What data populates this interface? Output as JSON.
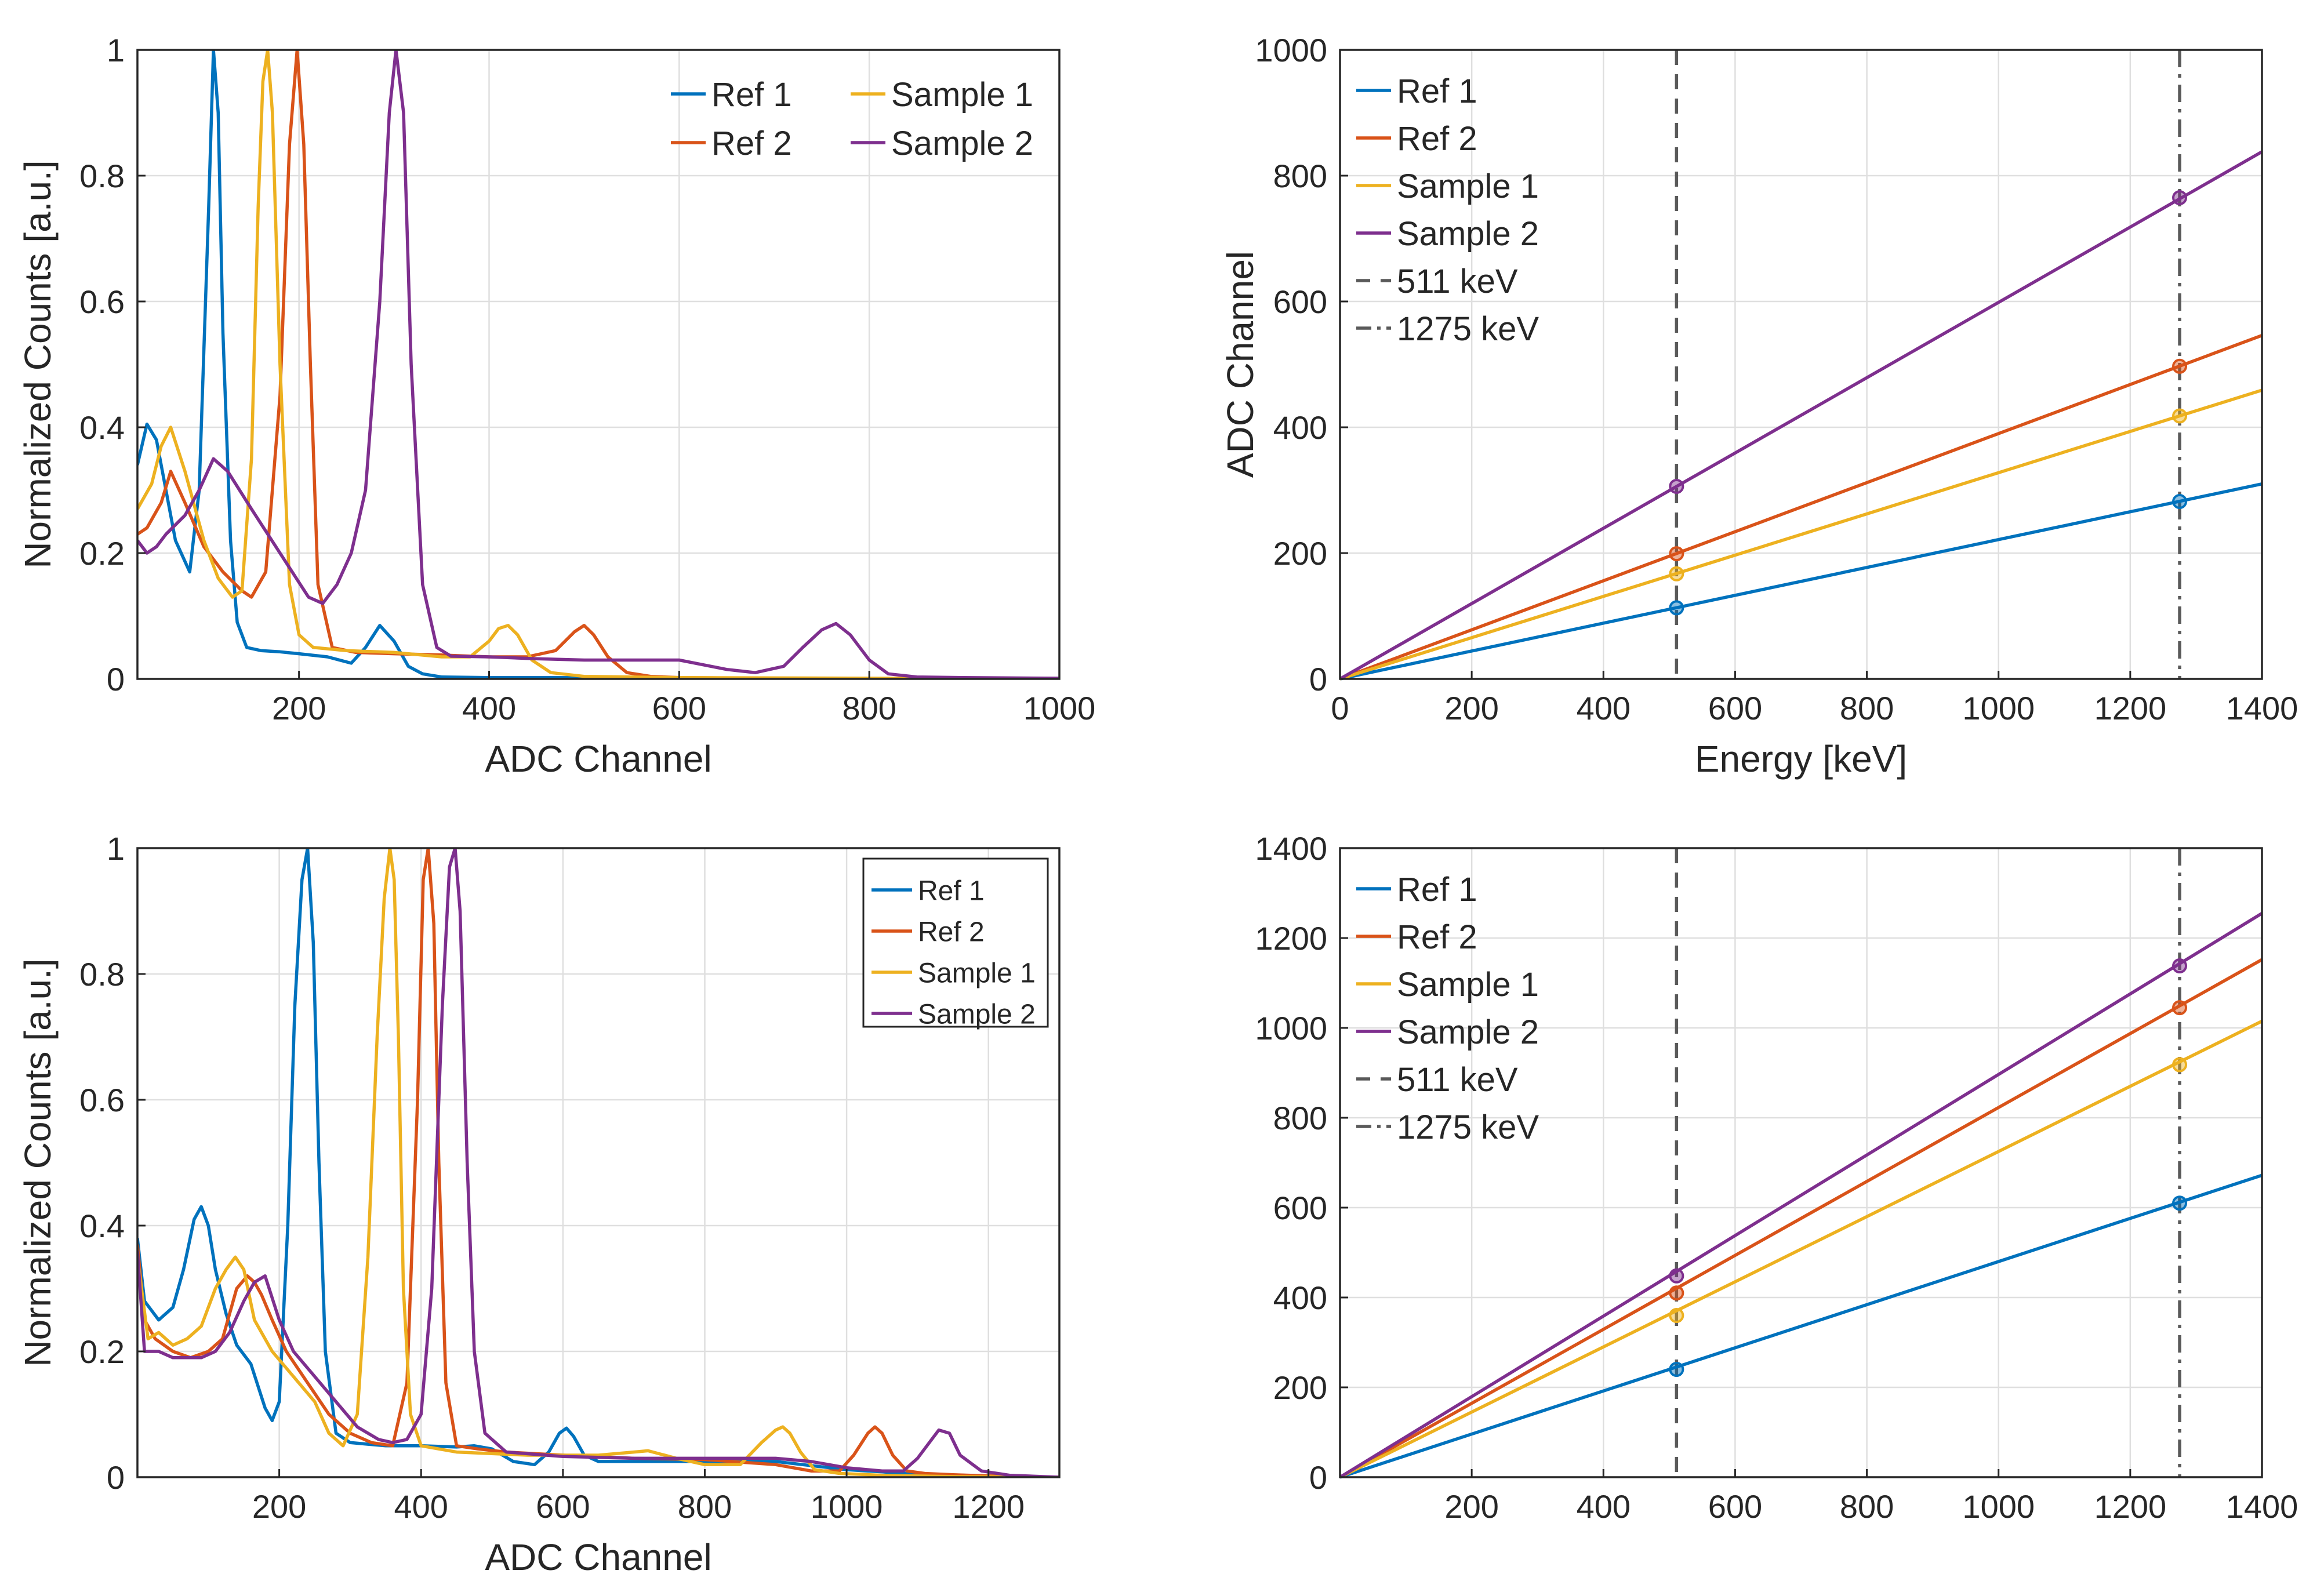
{
  "colors": {
    "ref1": "#0072BD",
    "ref2": "#D95319",
    "sample1": "#EDB120",
    "sample2": "#7E2F8E",
    "grid": "#dfdfdf",
    "axis": "#262626",
    "ref_line": "#5a5a5a"
  },
  "chart_data": [
    {
      "id": "spectrum-top",
      "type": "line",
      "title": "",
      "xlabel": "ADC Channel",
      "ylabel": "Normalized Counts [a.u.]",
      "xlim": [
        30,
        1000
      ],
      "ylim": [
        0,
        1
      ],
      "xticks": [
        "200",
        "400",
        "600",
        "800",
        "1000"
      ],
      "xtick_values": [
        200,
        400,
        600,
        800,
        1000
      ],
      "yticks": [
        "0",
        "0.2",
        "0.4",
        "0.6",
        "0.8",
        "1"
      ],
      "ytick_values": [
        0,
        0.2,
        0.4,
        0.6,
        0.8,
        1
      ],
      "grid": true,
      "legend": {
        "placement": "top-right",
        "layout": "two-column",
        "boxed": false
      },
      "series": [
        {
          "name": "Ref 1",
          "color_key": "ref1",
          "x": [
            30,
            40,
            50,
            60,
            70,
            85,
            95,
            105,
            110,
            115,
            120,
            128,
            135,
            145,
            160,
            180,
            200,
            230,
            255,
            270,
            285,
            300,
            315,
            330,
            350,
            400,
            500,
            700,
            1000
          ],
          "y": [
            0.34,
            0.405,
            0.38,
            0.3,
            0.22,
            0.17,
            0.3,
            0.75,
            1.0,
            0.9,
            0.55,
            0.22,
            0.09,
            0.05,
            0.045,
            0.043,
            0.04,
            0.035,
            0.025,
            0.05,
            0.085,
            0.06,
            0.02,
            0.008,
            0.003,
            0.002,
            0.002,
            0.001,
            0.0
          ]
        },
        {
          "name": "Ref 2",
          "color_key": "ref2",
          "x": [
            30,
            40,
            55,
            65,
            80,
            100,
            120,
            140,
            150,
            165,
            180,
            190,
            198,
            205,
            212,
            220,
            235,
            260,
            300,
            350,
            400,
            440,
            470,
            490,
            500,
            510,
            525,
            545,
            570,
            600,
            700,
            1000
          ],
          "y": [
            0.23,
            0.24,
            0.28,
            0.33,
            0.28,
            0.21,
            0.17,
            0.14,
            0.13,
            0.17,
            0.45,
            0.85,
            1.0,
            0.85,
            0.5,
            0.15,
            0.05,
            0.042,
            0.04,
            0.038,
            0.035,
            0.035,
            0.045,
            0.075,
            0.085,
            0.07,
            0.035,
            0.01,
            0.004,
            0.002,
            0.001,
            0.0
          ]
        },
        {
          "name": "Sample 1",
          "color_key": "sample1",
          "x": [
            30,
            45,
            55,
            65,
            80,
            100,
            115,
            130,
            140,
            150,
            157,
            162,
            167,
            172,
            180,
            190,
            200,
            215,
            250,
            300,
            350,
            380,
            400,
            410,
            420,
            430,
            445,
            465,
            500,
            600,
            800,
            1000
          ],
          "y": [
            0.27,
            0.31,
            0.37,
            0.4,
            0.33,
            0.22,
            0.16,
            0.13,
            0.14,
            0.35,
            0.75,
            0.95,
            1.0,
            0.9,
            0.5,
            0.15,
            0.07,
            0.05,
            0.045,
            0.042,
            0.035,
            0.035,
            0.06,
            0.08,
            0.085,
            0.07,
            0.03,
            0.01,
            0.004,
            0.002,
            0.001,
            0.0
          ]
        },
        {
          "name": "Sample 2",
          "color_key": "sample2",
          "x": [
            30,
            40,
            50,
            60,
            80,
            95,
            110,
            125,
            150,
            180,
            210,
            225,
            240,
            255,
            270,
            285,
            295,
            302,
            310,
            318,
            330,
            345,
            360,
            400,
            450,
            500,
            550,
            600,
            650,
            680,
            710,
            730,
            750,
            765,
            780,
            800,
            820,
            850,
            900,
            1000
          ],
          "y": [
            0.22,
            0.2,
            0.21,
            0.23,
            0.26,
            0.3,
            0.35,
            0.33,
            0.27,
            0.2,
            0.13,
            0.12,
            0.15,
            0.2,
            0.3,
            0.6,
            0.9,
            1.0,
            0.9,
            0.5,
            0.15,
            0.05,
            0.036,
            0.035,
            0.032,
            0.03,
            0.03,
            0.03,
            0.015,
            0.01,
            0.02,
            0.05,
            0.078,
            0.088,
            0.07,
            0.03,
            0.008,
            0.003,
            0.002,
            0.001
          ]
        }
      ]
    },
    {
      "id": "calibration-top",
      "type": "line",
      "title": "",
      "xlabel": "Energy [keV]",
      "ylabel": "ADC Channel",
      "xlim": [
        0,
        1400
      ],
      "ylim": [
        0,
        1000
      ],
      "xticks": [
        "0",
        "200",
        "400",
        "600",
        "800",
        "1000",
        "1200",
        "1400"
      ],
      "xtick_values": [
        0,
        200,
        400,
        600,
        800,
        1000,
        1200,
        1400
      ],
      "yticks": [
        "0",
        "200",
        "400",
        "600",
        "800",
        "1000"
      ],
      "ytick_values": [
        0,
        200,
        400,
        600,
        800,
        1000
      ],
      "grid": true,
      "legend": {
        "placement": "top-left",
        "layout": "single-column",
        "boxed": false
      },
      "vlines": [
        {
          "name": "511 keV",
          "x": 511,
          "style": "dashed"
        },
        {
          "name": "1275 keV",
          "x": 1275,
          "style": "dashdot"
        }
      ],
      "series": [
        {
          "name": "Ref 1",
          "color_key": "ref1",
          "fit_x": [
            0,
            1400
          ],
          "fit_y": [
            0,
            310
          ],
          "points_x": [
            511,
            1275
          ],
          "points_y": [
            113,
            282
          ]
        },
        {
          "name": "Ref 2",
          "color_key": "ref2",
          "fit_x": [
            0,
            1400
          ],
          "fit_y": [
            0,
            546
          ],
          "points_x": [
            511,
            1275
          ],
          "points_y": [
            199,
            497
          ]
        },
        {
          "name": "Sample 1",
          "color_key": "sample1",
          "fit_x": [
            0,
            1400
          ],
          "fit_y": [
            0,
            459
          ],
          "points_x": [
            511,
            1275
          ],
          "points_y": [
            167,
            418
          ]
        },
        {
          "name": "Sample 2",
          "color_key": "sample2",
          "fit_x": [
            0,
            1400
          ],
          "fit_y": [
            0,
            838
          ],
          "points_x": [
            511,
            1275
          ],
          "points_y": [
            306,
            765
          ]
        }
      ]
    },
    {
      "id": "spectrum-bottom",
      "type": "line",
      "title": "",
      "xlabel": "ADC Channel",
      "ylabel": "Normalized Counts [a.u.]",
      "xlim": [
        0,
        1300
      ],
      "ylim": [
        0,
        1
      ],
      "xticks": [
        "200",
        "400",
        "600",
        "800",
        "1000",
        "1200"
      ],
      "xtick_values": [
        200,
        400,
        600,
        800,
        1000,
        1200
      ],
      "yticks": [
        "0",
        "0.2",
        "0.4",
        "0.6",
        "0.8",
        "1"
      ],
      "ytick_values": [
        0,
        0.2,
        0.4,
        0.6,
        0.8,
        1
      ],
      "grid": true,
      "legend": {
        "placement": "top-right",
        "layout": "single-column",
        "boxed": true
      },
      "series": [
        {
          "name": "Ref 1",
          "color_key": "ref1",
          "x": [
            0,
            10,
            30,
            50,
            65,
            80,
            90,
            100,
            110,
            125,
            140,
            160,
            180,
            190,
            200,
            212,
            222,
            232,
            240,
            248,
            256,
            265,
            280,
            300,
            350,
            400,
            450,
            475,
            500,
            530,
            560,
            580,
            595,
            605,
            615,
            630,
            650,
            700,
            800,
            900,
            1000,
            1100,
            1200,
            1300
          ],
          "y": [
            0.38,
            0.28,
            0.25,
            0.27,
            0.33,
            0.41,
            0.43,
            0.4,
            0.33,
            0.26,
            0.21,
            0.18,
            0.11,
            0.09,
            0.12,
            0.4,
            0.75,
            0.95,
            1.0,
            0.85,
            0.5,
            0.2,
            0.07,
            0.055,
            0.05,
            0.05,
            0.048,
            0.05,
            0.045,
            0.025,
            0.02,
            0.04,
            0.07,
            0.078,
            0.065,
            0.035,
            0.025,
            0.025,
            0.025,
            0.025,
            0.012,
            0.005,
            0.002,
            0.0
          ]
        },
        {
          "name": "Ref 2",
          "color_key": "ref2",
          "x": [
            0,
            10,
            25,
            50,
            75,
            100,
            120,
            140,
            155,
            165,
            175,
            190,
            210,
            240,
            270,
            300,
            330,
            360,
            380,
            395,
            403,
            410,
            418,
            425,
            435,
            450,
            480,
            520,
            600,
            700,
            800,
            900,
            950,
            990,
            1010,
            1030,
            1040,
            1050,
            1065,
            1085,
            1110,
            1150,
            1200,
            1300
          ],
          "y": [
            0.37,
            0.25,
            0.22,
            0.2,
            0.19,
            0.2,
            0.22,
            0.3,
            0.32,
            0.31,
            0.29,
            0.25,
            0.2,
            0.15,
            0.1,
            0.07,
            0.055,
            0.05,
            0.15,
            0.6,
            0.95,
            1.0,
            0.88,
            0.5,
            0.15,
            0.05,
            0.045,
            0.04,
            0.035,
            0.03,
            0.028,
            0.02,
            0.01,
            0.01,
            0.035,
            0.07,
            0.08,
            0.07,
            0.035,
            0.01,
            0.006,
            0.004,
            0.002,
            0.0
          ]
        },
        {
          "name": "Sample 1",
          "color_key": "sample1",
          "x": [
            0,
            15,
            30,
            50,
            70,
            90,
            110,
            125,
            138,
            150,
            165,
            190,
            220,
            250,
            270,
            290,
            310,
            325,
            338,
            348,
            356,
            362,
            368,
            375,
            385,
            400,
            450,
            550,
            650,
            700,
            720,
            760,
            800,
            850,
            880,
            900,
            910,
            920,
            935,
            955,
            990,
            1050,
            1150,
            1300
          ],
          "y": [
            0.35,
            0.22,
            0.23,
            0.21,
            0.22,
            0.24,
            0.3,
            0.33,
            0.35,
            0.33,
            0.25,
            0.2,
            0.16,
            0.12,
            0.07,
            0.05,
            0.1,
            0.35,
            0.7,
            0.92,
            1.0,
            0.95,
            0.7,
            0.3,
            0.1,
            0.05,
            0.04,
            0.035,
            0.035,
            0.04,
            0.042,
            0.03,
            0.02,
            0.02,
            0.055,
            0.075,
            0.08,
            0.07,
            0.04,
            0.012,
            0.006,
            0.003,
            0.001,
            0.0
          ]
        },
        {
          "name": "Sample 2",
          "color_key": "sample2",
          "x": [
            0,
            10,
            30,
            50,
            70,
            90,
            110,
            130,
            150,
            165,
            180,
            200,
            220,
            250,
            280,
            310,
            340,
            360,
            380,
            400,
            415,
            430,
            440,
            448,
            455,
            465,
            475,
            490,
            520,
            600,
            700,
            800,
            900,
            950,
            1000,
            1050,
            1080,
            1100,
            1120,
            1130,
            1145,
            1160,
            1190,
            1230,
            1300
          ],
          "y": [
            0.36,
            0.2,
            0.2,
            0.19,
            0.19,
            0.19,
            0.2,
            0.23,
            0.28,
            0.31,
            0.32,
            0.25,
            0.2,
            0.16,
            0.12,
            0.08,
            0.06,
            0.055,
            0.06,
            0.1,
            0.3,
            0.75,
            0.97,
            1.0,
            0.9,
            0.5,
            0.2,
            0.07,
            0.04,
            0.033,
            0.03,
            0.03,
            0.03,
            0.025,
            0.015,
            0.01,
            0.01,
            0.03,
            0.06,
            0.075,
            0.07,
            0.035,
            0.01,
            0.003,
            0.0
          ]
        }
      ]
    },
    {
      "id": "calibration-bottom",
      "type": "line",
      "title": "",
      "xlabel": "",
      "ylabel": "",
      "xlim": [
        0,
        1400
      ],
      "ylim": [
        0,
        1400
      ],
      "xticks": [
        "200",
        "400",
        "600",
        "800",
        "1000",
        "1200",
        "1400"
      ],
      "xtick_values": [
        200,
        400,
        600,
        800,
        1000,
        1200,
        1400
      ],
      "yticks": [
        "0",
        "200",
        "400",
        "600",
        "800",
        "1000",
        "1200",
        "1400"
      ],
      "ytick_values": [
        0,
        200,
        400,
        600,
        800,
        1000,
        1200,
        1400
      ],
      "grid": true,
      "legend": {
        "placement": "top-left",
        "layout": "single-column",
        "boxed": false
      },
      "vlines": [
        {
          "name": "511 keV",
          "x": 511,
          "style": "dashed"
        },
        {
          "name": "1275 keV",
          "x": 1275,
          "style": "dashdot"
        }
      ],
      "series": [
        {
          "name": "Ref 1",
          "color_key": "ref1",
          "fit_x": [
            0,
            1400
          ],
          "fit_y": [
            0,
            672
          ],
          "points_x": [
            511,
            1275
          ],
          "points_y": [
            240,
            610
          ]
        },
        {
          "name": "Ref 2",
          "color_key": "ref2",
          "fit_x": [
            0,
            1400
          ],
          "fit_y": [
            0,
            1152
          ],
          "points_x": [
            511,
            1275
          ],
          "points_y": [
            410,
            1045
          ]
        },
        {
          "name": "Sample 1",
          "color_key": "sample1",
          "fit_x": [
            0,
            1400
          ],
          "fit_y": [
            0,
            1015
          ],
          "points_x": [
            511,
            1275
          ],
          "points_y": [
            360,
            918
          ]
        },
        {
          "name": "Sample 2",
          "color_key": "sample2",
          "fit_x": [
            0,
            1400
          ],
          "fit_y": [
            0,
            1255
          ],
          "points_x": [
            511,
            1275
          ],
          "points_y": [
            448,
            1138
          ]
        }
      ]
    }
  ]
}
